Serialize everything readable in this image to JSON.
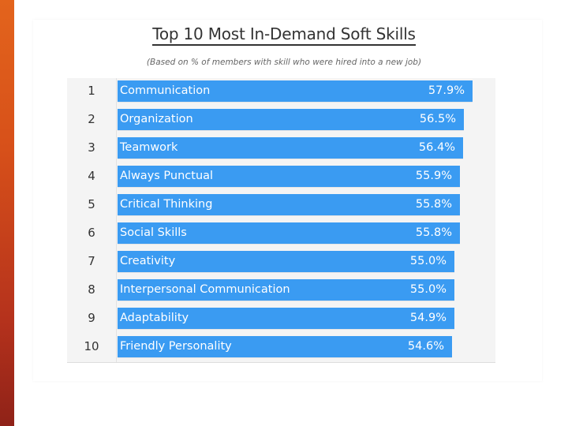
{
  "title": "Top 10 Most In-Demand Soft Skills",
  "subtitle": "(Based on % of members with skill who were hired into a new job)",
  "colors": {
    "bar": "#3a9bf2",
    "accent_strip": "#d7501a"
  },
  "chart_data": {
    "type": "bar",
    "orientation": "horizontal",
    "title": "Top 10 Most In-Demand Soft Skills",
    "subtitle": "(Based on % of members with skill who were hired into a new job)",
    "ranks": [
      "1",
      "2",
      "3",
      "4",
      "5",
      "6",
      "7",
      "8",
      "9",
      "10"
    ],
    "categories": [
      "Communication",
      "Organization",
      "Teamwork",
      "Always Punctual",
      "Critical Thinking",
      "Social Skills",
      "Creativity",
      "Interpersonal Communication",
      "Adaptability",
      "Friendly Personality"
    ],
    "values": [
      57.9,
      56.5,
      56.4,
      55.9,
      55.8,
      55.8,
      55.0,
      55.0,
      54.9,
      54.6
    ],
    "value_labels": [
      "57.9%",
      "56.5%",
      "56.4%",
      "55.9%",
      "55.8%",
      "55.8%",
      "55.0%",
      "55.0%",
      "54.9%",
      "54.6%"
    ],
    "xlabel": "",
    "ylabel": "",
    "grid": false,
    "legend": "none"
  }
}
